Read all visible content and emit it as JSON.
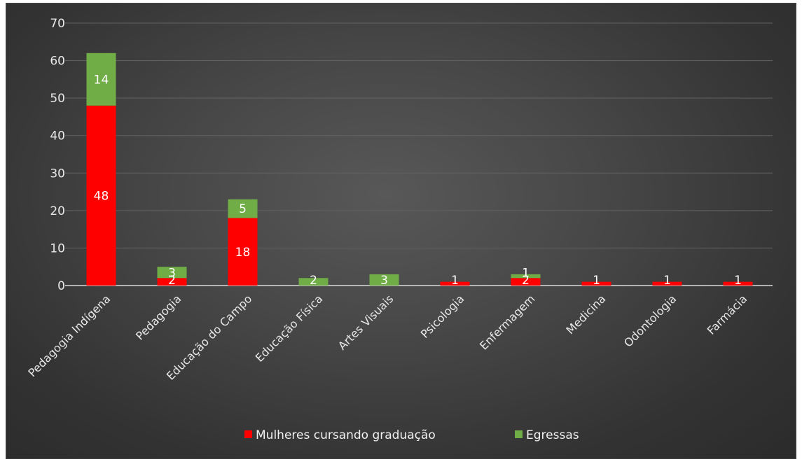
{
  "chart_data": {
    "type": "bar",
    "stacked": true,
    "categories": [
      "Pedagogia Indígena",
      "Pedagogia",
      "Educação do Campo",
      "Educação Física",
      "Artes Visuais",
      "Psicologia",
      "Enfermagem",
      "Medicina",
      "Odontologia",
      "Farmácia"
    ],
    "series": [
      {
        "name": "Mulheres cursando graduação",
        "color": "#ff0000",
        "values": [
          48,
          2,
          18,
          0,
          0,
          1,
          2,
          1,
          1,
          1
        ]
      },
      {
        "name": "Egressas",
        "color": "#70ad47",
        "values": [
          14,
          3,
          5,
          2,
          3,
          0,
          1,
          0,
          0,
          0
        ]
      }
    ],
    "ylim": [
      0,
      70
    ],
    "yticks": [
      0,
      10,
      20,
      30,
      40,
      50,
      60,
      70
    ],
    "grid": true,
    "legend_position": "bottom",
    "title": "",
    "xlabel": "",
    "ylabel": ""
  }
}
